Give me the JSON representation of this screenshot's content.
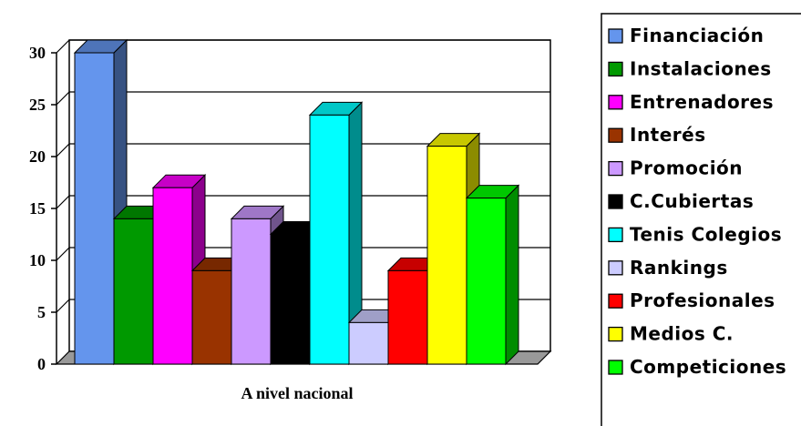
{
  "chart_data": {
    "type": "bar",
    "style": "3d-clustered-column",
    "categories": [
      "A nivel nacional"
    ],
    "ylim": [
      0,
      30
    ],
    "yticks": [
      0,
      5,
      10,
      15,
      20,
      25,
      30
    ],
    "grid": true,
    "legend_position": "right",
    "series": [
      {
        "name": "Financiación",
        "values": [
          30
        ],
        "color": "#6495ED"
      },
      {
        "name": "Instalaciones",
        "values": [
          14
        ],
        "color": "#009900"
      },
      {
        "name": "Entrenadores",
        "values": [
          17
        ],
        "color": "#FF00FF"
      },
      {
        "name": "Interés",
        "values": [
          9
        ],
        "color": "#993300"
      },
      {
        "name": "Promoción",
        "values": [
          14
        ],
        "color": "#CC99FF"
      },
      {
        "name": "C.Cubiertas",
        "values": [
          12.5
        ],
        "color": "#000000"
      },
      {
        "name": "Tenis Colegios",
        "values": [
          24
        ],
        "color": "#00FFFF"
      },
      {
        "name": "Rankings",
        "values": [
          4
        ],
        "color": "#CCCCFF"
      },
      {
        "name": "Profesionales",
        "values": [
          9
        ],
        "color": "#FF0000"
      },
      {
        "name": "Medios C.",
        "values": [
          21
        ],
        "color": "#FFFF00"
      },
      {
        "name": "Competiciones",
        "values": [
          16
        ],
        "color": "#00FF00"
      }
    ]
  }
}
